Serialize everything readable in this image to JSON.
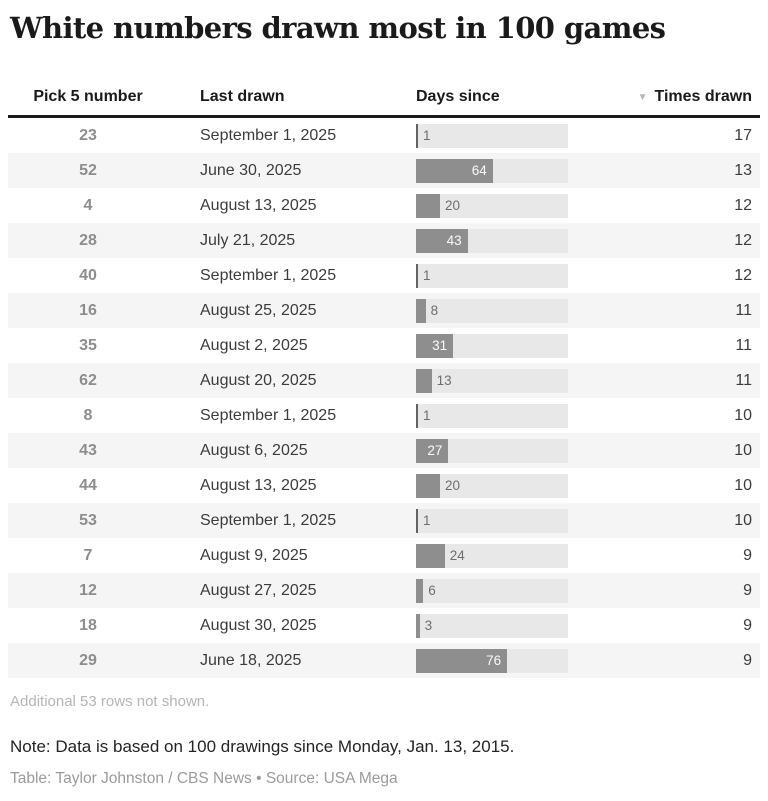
{
  "title": "White numbers drawn most in 100 games",
  "table": {
    "columns": [
      {
        "label": "Pick 5 number"
      },
      {
        "label": "Last drawn"
      },
      {
        "label": "Days since"
      },
      {
        "label": "Times drawn"
      }
    ],
    "sort_icon": "▼",
    "sorted_by": "Times drawn",
    "sort_direction": "descending",
    "rows": [
      {
        "number": "23",
        "last_drawn": "September 1, 2025",
        "days_since": 1,
        "times_drawn": 17
      },
      {
        "number": "52",
        "last_drawn": "June 30, 2025",
        "days_since": 64,
        "times_drawn": 13
      },
      {
        "number": "4",
        "last_drawn": "August 13, 2025",
        "days_since": 20,
        "times_drawn": 12
      },
      {
        "number": "28",
        "last_drawn": "July 21, 2025",
        "days_since": 43,
        "times_drawn": 12
      },
      {
        "number": "40",
        "last_drawn": "September 1, 2025",
        "days_since": 1,
        "times_drawn": 12
      },
      {
        "number": "16",
        "last_drawn": "August 25, 2025",
        "days_since": 8,
        "times_drawn": 11
      },
      {
        "number": "35",
        "last_drawn": "August 2, 2025",
        "days_since": 31,
        "times_drawn": 11
      },
      {
        "number": "62",
        "last_drawn": "August 20, 2025",
        "days_since": 13,
        "times_drawn": 11
      },
      {
        "number": "8",
        "last_drawn": "September 1, 2025",
        "days_since": 1,
        "times_drawn": 10
      },
      {
        "number": "43",
        "last_drawn": "August 6, 2025",
        "days_since": 27,
        "times_drawn": 10
      },
      {
        "number": "44",
        "last_drawn": "August 13, 2025",
        "days_since": 20,
        "times_drawn": 10
      },
      {
        "number": "53",
        "last_drawn": "September 1, 2025",
        "days_since": 1,
        "times_drawn": 10
      },
      {
        "number": "7",
        "last_drawn": "August 9, 2025",
        "days_since": 24,
        "times_drawn": 9
      },
      {
        "number": "12",
        "last_drawn": "August 27, 2025",
        "days_since": 6,
        "times_drawn": 9
      },
      {
        "number": "18",
        "last_drawn": "August 30, 2025",
        "days_since": 3,
        "times_drawn": 9
      },
      {
        "number": "29",
        "last_drawn": "June 18, 2025",
        "days_since": 76,
        "times_drawn": 9
      }
    ]
  },
  "footer": {
    "additional": "Additional 53 rows not shown.",
    "note": "Note: Data is based on 100 drawings since Monday, Jan. 13, 2015.",
    "credit": "Table: Taylor Johnston / CBS News • Source: USA Mega"
  },
  "colors": {
    "bar": "#8e8e8e",
    "bar_thin": "#636363",
    "bar_track": "#e8e8e8",
    "row_alt_background": "#f5f5f5",
    "header_rule": "#1a1a1a",
    "pick_number_text": "#8d8d8d",
    "muted_text": "#b5b5b5",
    "credit_text": "#9b9b9b"
  },
  "chart_data": {
    "type": "table",
    "title": "White numbers drawn most in 100 games",
    "columns": [
      "Pick 5 number",
      "Last drawn",
      "Days since",
      "Times drawn"
    ],
    "bar_column": "Days since",
    "sorted_by": "Times drawn",
    "sort_direction": "descending",
    "rows": [
      [
        23,
        "September 1, 2025",
        1,
        17
      ],
      [
        52,
        "June 30, 2025",
        64,
        13
      ],
      [
        4,
        "August 13, 2025",
        20,
        12
      ],
      [
        28,
        "July 21, 2025",
        43,
        12
      ],
      [
        40,
        "September 1, 2025",
        1,
        12
      ],
      [
        16,
        "August 25, 2025",
        8,
        11
      ],
      [
        35,
        "August 2, 2025",
        31,
        11
      ],
      [
        62,
        "August 20, 2025",
        13,
        11
      ],
      [
        8,
        "September 1, 2025",
        1,
        10
      ],
      [
        43,
        "August 6, 2025",
        27,
        10
      ],
      [
        44,
        "August 13, 2025",
        20,
        10
      ],
      [
        53,
        "September 1, 2025",
        1,
        10
      ],
      [
        7,
        "August 9, 2025",
        24,
        9
      ],
      [
        12,
        "August 27, 2025",
        6,
        9
      ],
      [
        18,
        "August 30, 2025",
        3,
        9
      ],
      [
        29,
        "June 18, 2025",
        76,
        9
      ]
    ],
    "notes": "Additional 53 rows not shown. Data is based on 100 drawings since Monday, Jan. 13, 2015."
  }
}
